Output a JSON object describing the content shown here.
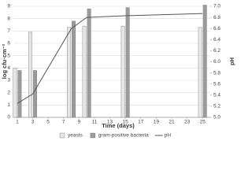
{
  "chart_data": {
    "type": "bar-line",
    "x_label": "Time (days)",
    "y_label": "log cfu·cm⁻²",
    "y2_label": "pH",
    "x": [
      1,
      3,
      8,
      10,
      15,
      25
    ],
    "xlim": [
      0.5,
      26
    ],
    "xticks": [
      1,
      3,
      5,
      7,
      9,
      11,
      13,
      15,
      17,
      19,
      21,
      23,
      25
    ],
    "ylim": [
      0,
      9
    ],
    "yticks": [
      0,
      1,
      2,
      3,
      4,
      5,
      6,
      7,
      8,
      9
    ],
    "y2lim": [
      5,
      7
    ],
    "y2ticks": [
      {
        "value": 5,
        "label": "5.0"
      },
      5.2,
      5.4,
      5.6,
      5.8,
      {
        "value": 6,
        "label": "6.0"
      },
      6.2,
      6.4,
      6.6,
      6.8,
      {
        "value": 7,
        "label": "7.0"
      }
    ],
    "grid": true,
    "legend": "bottom",
    "series": [
      {
        "name": "yeasts",
        "type": "bar",
        "color": "#e6e6e6",
        "values": [
          4.0,
          6.9,
          7.3,
          7.4,
          7.4,
          7.3
        ]
      },
      {
        "name": "gram-positive bacteria",
        "type": "bar",
        "color": "#9b9b9b",
        "values": [
          3.8,
          3.8,
          7.8,
          8.8,
          8.9,
          9.1
        ]
      },
      {
        "name": "pH",
        "type": "line",
        "axis": "y2",
        "color": "#555555",
        "values": [
          5.25,
          5.42,
          6.6,
          6.8,
          6.83,
          6.87
        ]
      }
    ]
  }
}
